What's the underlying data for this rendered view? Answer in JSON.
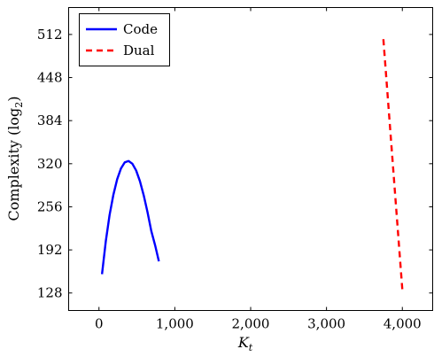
{
  "chart_data": {
    "type": "line",
    "xlabel_main": "K",
    "xlabel_sub": "t",
    "ylabel_main": "Complexity (log",
    "ylabel_sub": "2",
    "ylabel_close": ")",
    "xlim": [
      -400,
      4400
    ],
    "ylim": [
      102,
      552
    ],
    "xticks": [
      0,
      1000,
      2000,
      3000,
      4000
    ],
    "xtick_labels": [
      "0",
      "1,000",
      "2,000",
      "3,000",
      "4,000"
    ],
    "yticks": [
      128,
      192,
      256,
      320,
      384,
      448,
      512
    ],
    "ytick_labels": [
      "128",
      "192",
      "256",
      "320",
      "384",
      "448",
      "512"
    ],
    "grid": false,
    "legend_position": "top-left",
    "series": [
      {
        "name": "Code",
        "color": "#0000ff",
        "style": "solid",
        "x": [
          40,
          90,
          140,
          190,
          240,
          290,
          340,
          390,
          440,
          490,
          540,
          590,
          640,
          690,
          740,
          790
        ],
        "y": [
          156,
          205,
          244,
          274,
          297,
          313,
          322,
          324,
          320,
          310,
          294,
          273,
          248,
          220,
          199,
          175
        ]
      },
      {
        "name": "Dual",
        "color": "#ff0000",
        "style": "dashed",
        "x": [
          3750,
          4000
        ],
        "y": [
          505,
          133
        ]
      }
    ]
  }
}
